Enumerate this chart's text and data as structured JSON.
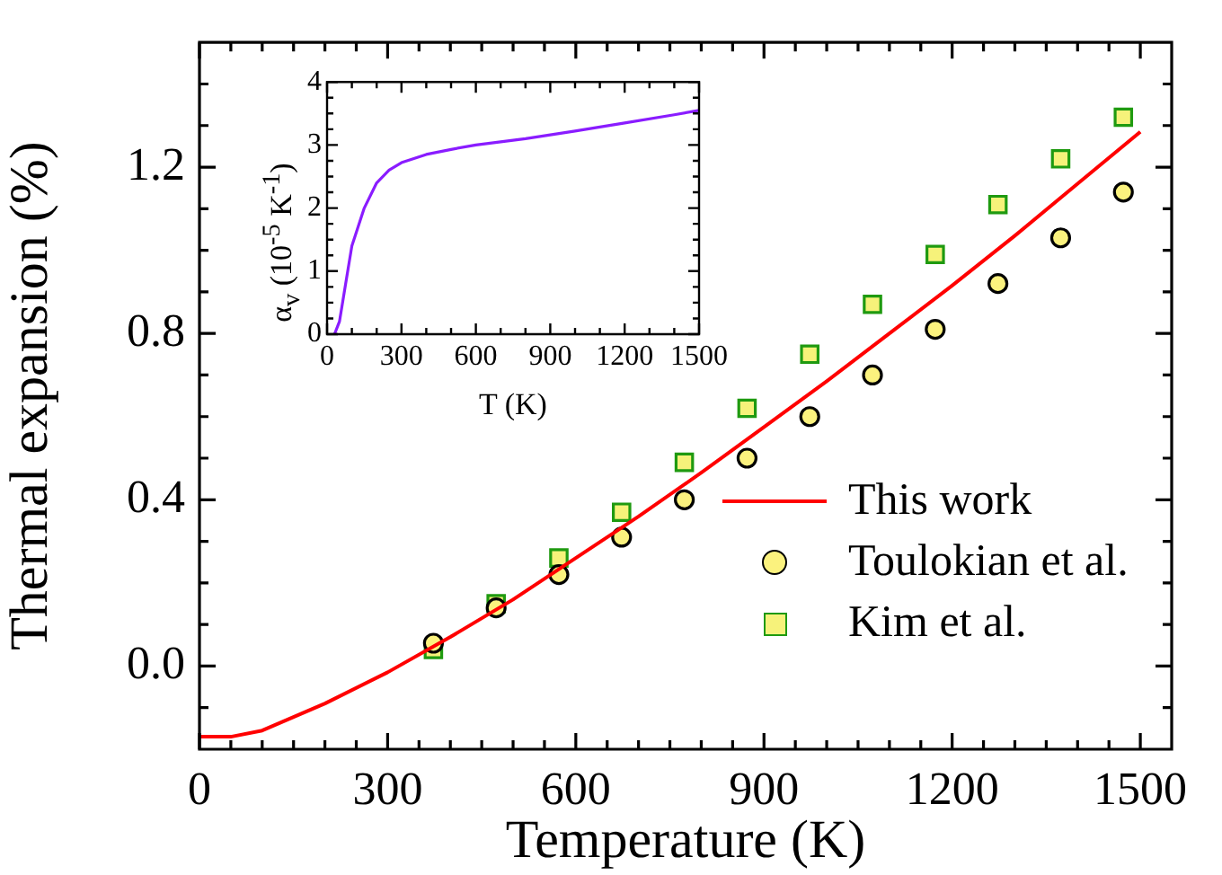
{
  "chart_data": [
    {
      "type": "scatter",
      "xlabel": "Temperature (K)",
      "ylabel": "Thermal expansion (%)",
      "xlim": [
        0,
        1550
      ],
      "ylim": [
        -0.2,
        1.5
      ],
      "xticks": [
        0,
        {
          "value": 50,
          "label": null
        },
        {
          "value": 100,
          "label": null
        },
        {
          "value": 150,
          "label": null
        },
        {
          "value": 200,
          "label": null
        },
        {
          "value": 250,
          "label": null
        },
        300,
        {
          "value": 350,
          "label": null
        },
        {
          "value": 400,
          "label": null
        },
        {
          "value": 450,
          "label": null
        },
        {
          "value": 500,
          "label": null
        },
        {
          "value": 550,
          "label": null
        },
        600,
        {
          "value": 650,
          "label": null
        },
        {
          "value": 700,
          "label": null
        },
        {
          "value": 750,
          "label": null
        },
        {
          "value": 800,
          "label": null
        },
        {
          "value": 850,
          "label": null
        },
        900,
        {
          "value": 950,
          "label": null
        },
        {
          "value": 1000,
          "label": null
        },
        {
          "value": 1050,
          "label": null
        },
        {
          "value": 1100,
          "label": null
        },
        {
          "value": 1150,
          "label": null
        },
        1200,
        {
          "value": 1250,
          "label": null
        },
        {
          "value": 1300,
          "label": null
        },
        {
          "value": 1350,
          "label": null
        },
        {
          "value": 1400,
          "label": null
        },
        {
          "value": 1450,
          "label": null
        },
        1500
      ],
      "yticks": [
        {
          "value": -0.1,
          "label": null
        },
        {
          "value": 0,
          "label": "0.0"
        },
        {
          "value": 0.1,
          "label": null
        },
        {
          "value": 0.2,
          "label": null
        },
        {
          "value": 0.3,
          "label": null
        },
        {
          "value": 0.4,
          "label": "0.4"
        },
        {
          "value": 0.5,
          "label": null
        },
        {
          "value": 0.6,
          "label": null
        },
        {
          "value": 0.7,
          "label": null
        },
        {
          "value": 0.8,
          "label": "0.8"
        },
        {
          "value": 0.9,
          "label": null
        },
        {
          "value": 1.0,
          "label": null
        },
        {
          "value": 1.1,
          "label": null
        },
        {
          "value": 1.2,
          "label": "1.2"
        },
        {
          "value": 1.3,
          "label": null
        },
        {
          "value": 1.4,
          "label": null
        }
      ],
      "legend": "bottom right",
      "grid": false,
      "series": [
        {
          "name": "This work",
          "type": "line",
          "marker": "none",
          "color": "#ff0000",
          "x": [
            0,
            50,
            100,
            200,
            300,
            400,
            500,
            600,
            700,
            800,
            900,
            1000,
            1100,
            1200,
            1300,
            1400,
            1500
          ],
          "values": [
            -0.17,
            -0.17,
            -0.155,
            -0.09,
            -0.015,
            0.07,
            0.16,
            0.26,
            0.36,
            0.465,
            0.575,
            0.685,
            0.8,
            0.915,
            1.035,
            1.16,
            1.285
          ]
        },
        {
          "name": "Toulokian et al.",
          "type": "scatter",
          "marker": "circle",
          "color": "#fbf27e",
          "x": [
            373,
            473,
            573,
            673,
            773,
            873,
            973,
            1073,
            1173,
            1273,
            1373,
            1473
          ],
          "values": [
            0.055,
            0.14,
            0.22,
            0.31,
            0.4,
            0.5,
            0.6,
            0.7,
            0.81,
            0.92,
            1.03,
            1.14
          ]
        },
        {
          "name": "Kim et al.",
          "type": "scatter",
          "marker": "square",
          "color": "#f6f27a",
          "x": [
            373,
            473,
            573,
            673,
            773,
            873,
            973,
            1073,
            1173,
            1273,
            1373,
            1473
          ],
          "values": [
            0.04,
            0.15,
            0.26,
            0.37,
            0.49,
            0.62,
            0.75,
            0.87,
            0.99,
            1.11,
            1.22,
            1.32
          ]
        }
      ]
    },
    {
      "type": "line",
      "xlabel": "T (K)",
      "ylabel": "α$_{v}$ (10$^{-5}$ K$^{-1}$)",
      "xlim": [
        0,
        1500
      ],
      "ylim": [
        0,
        4
      ],
      "xticks": [
        0,
        {
          "value": 100,
          "label": null
        },
        {
          "value": 200,
          "label": null
        },
        300,
        {
          "value": 400,
          "label": null
        },
        {
          "value": 500,
          "label": null
        },
        600,
        {
          "value": 700,
          "label": null
        },
        {
          "value": 800,
          "label": null
        },
        900,
        {
          "value": 1000,
          "label": null
        },
        {
          "value": 1100,
          "label": null
        },
        1200,
        {
          "value": 1300,
          "label": null
        },
        {
          "value": 1400,
          "label": null
        },
        1500
      ],
      "yticks": [
        0,
        {
          "value": 0.25,
          "label": null
        },
        {
          "value": 0.5,
          "label": null
        },
        {
          "value": 0.75,
          "label": null
        },
        1,
        {
          "value": 1.25,
          "label": null
        },
        {
          "value": 1.5,
          "label": null
        },
        {
          "value": 1.75,
          "label": null
        },
        2,
        {
          "value": 2.25,
          "label": null
        },
        {
          "value": 2.5,
          "label": null
        },
        {
          "value": 2.75,
          "label": null
        },
        3,
        {
          "value": 3.25,
          "label": null
        },
        {
          "value": 3.5,
          "label": null
        },
        {
          "value": 3.75,
          "label": null
        },
        4
      ],
      "grid": false,
      "series": [
        {
          "color": "#8a1cff",
          "x": [
            30,
            50,
            75,
            100,
            150,
            200,
            250,
            300,
            400,
            500,
            600,
            800,
            1000,
            1200,
            1400,
            1500
          ],
          "values": [
            0,
            0.2,
            0.8,
            1.4,
            2.0,
            2.4,
            2.6,
            2.72,
            2.85,
            2.93,
            3.0,
            3.1,
            3.22,
            3.35,
            3.48,
            3.55
          ]
        }
      ]
    }
  ]
}
